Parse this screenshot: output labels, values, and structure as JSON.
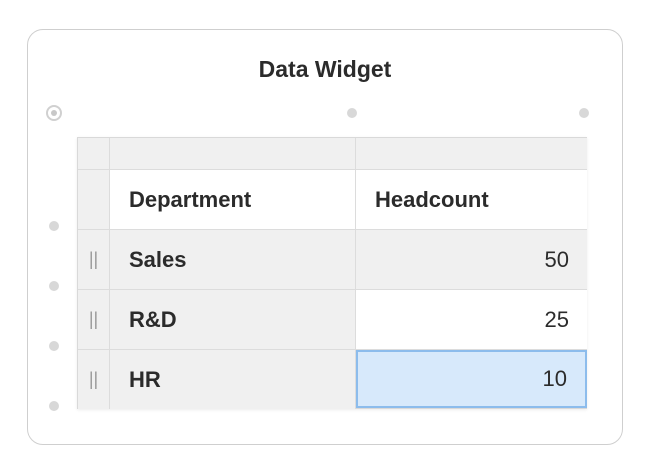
{
  "widget": {
    "title": "Data Widget"
  },
  "table": {
    "columns": [
      "Department",
      "Headcount"
    ],
    "rows": [
      {
        "department": "Sales",
        "headcount": "50"
      },
      {
        "department": "R&D",
        "headcount": "25"
      },
      {
        "department": "HR",
        "headcount": "10"
      }
    ],
    "row_handle_glyph": "||",
    "selected_cell": {
      "row": 3,
      "column": "Headcount"
    }
  },
  "colors": {
    "selected_cell_fill": "#d7e9fb",
    "selected_cell_border": "#8cbcec",
    "header_fill": "#f0f0f0",
    "widget_border": "#cfcfcf"
  }
}
